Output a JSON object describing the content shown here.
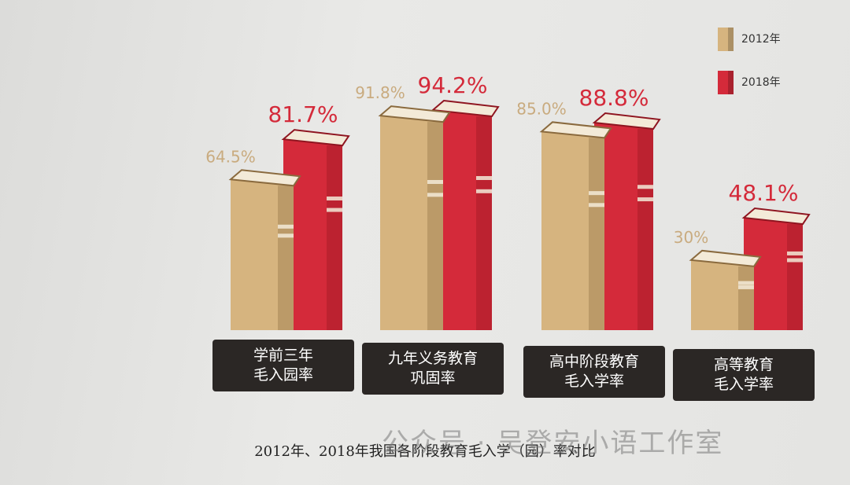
{
  "chart_data": {
    "type": "bar",
    "title": "2012年、2018年我国各阶段教育毛入学（园）率对比",
    "watermark": "公众号 · 吴登安小语工作室",
    "categories": [
      "学前三年\n毛入园率",
      "九年义务教育\n巩固率",
      "高中阶段教育\n毛入学率",
      "高等教育\n毛入学率"
    ],
    "series": [
      {
        "name": "2012年",
        "color": "#d6b47f",
        "values": [
          64.5,
          91.8,
          85.0,
          30
        ],
        "value_labels": [
          "64.5%",
          "91.8%",
          "85.0%",
          "30%"
        ]
      },
      {
        "name": "2018年",
        "color": "#d42a3a",
        "values": [
          81.7,
          94.2,
          88.8,
          48.1
        ],
        "value_labels": [
          "81.7%",
          "94.2%",
          "88.8%",
          "48.1%"
        ]
      }
    ],
    "legend": "top-right"
  }
}
